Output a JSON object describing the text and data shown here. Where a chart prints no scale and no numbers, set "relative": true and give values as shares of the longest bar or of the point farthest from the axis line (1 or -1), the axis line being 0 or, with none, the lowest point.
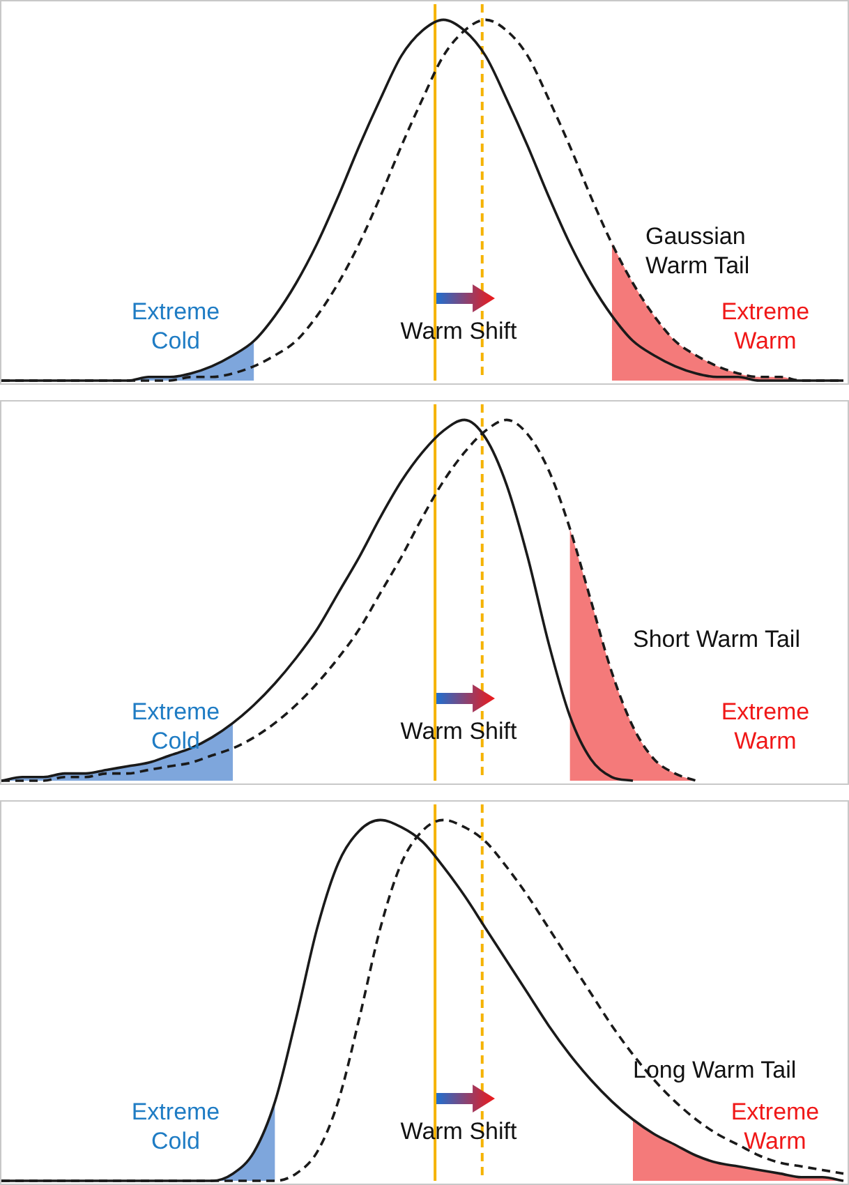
{
  "chart_data": [
    {
      "type": "line",
      "relative": true,
      "categories": [
        null,
        null,
        null,
        null,
        null,
        null,
        null,
        null,
        null,
        null,
        null,
        null,
        null,
        null,
        null,
        null,
        null,
        null,
        null,
        null,
        null,
        null,
        null,
        null,
        null,
        null,
        null,
        null,
        null,
        null,
        null,
        null,
        null,
        null,
        null,
        null,
        null,
        null,
        null,
        null,
        null
      ],
      "series": [
        {
          "type": "line",
          "color": "#1a1a1a",
          "line_style": "solid",
          "values": [
            0,
            0,
            0,
            0,
            0,
            0,
            0,
            0.01,
            0.01,
            0.02,
            0.04,
            0.07,
            0.11,
            0.18,
            0.27,
            0.38,
            0.51,
            0.65,
            0.78,
            0.9,
            0.97,
            1,
            0.97,
            0.9,
            0.78,
            0.65,
            0.51,
            0.38,
            0.27,
            0.18,
            0.11,
            0.07,
            0.04,
            0.02,
            0.01,
            0.01,
            0,
            0,
            0,
            0,
            0
          ]
        },
        {
          "type": "line",
          "color": "#1a1a1a",
          "line_style": "dashed",
          "values": [
            0,
            0,
            0,
            0,
            0,
            0,
            0,
            0,
            0,
            0.01,
            0.01,
            0.02,
            0.04,
            0.07,
            0.11,
            0.18,
            0.27,
            0.38,
            0.51,
            0.65,
            0.78,
            0.9,
            0.97,
            1,
            0.97,
            0.9,
            0.78,
            0.65,
            0.51,
            0.38,
            0.27,
            0.18,
            0.11,
            0.07,
            0.04,
            0.02,
            0.01,
            0.01,
            0,
            0,
            0
          ]
        },
        {
          "type": "area",
          "color": "#7ea6dc",
          "values": [
            0,
            0,
            0,
            0,
            0,
            0,
            0,
            0.01,
            0.01,
            0.02,
            0.04,
            0.07,
            0.11,
            null,
            null,
            null,
            null,
            null,
            null,
            null,
            null,
            null,
            null,
            null,
            null,
            null,
            null,
            null,
            null,
            null,
            null,
            null,
            null,
            null,
            null,
            null,
            null,
            null,
            null,
            null,
            null
          ]
        },
        {
          "type": "area",
          "color": "#f47a7a",
          "values": [
            null,
            null,
            null,
            null,
            null,
            null,
            null,
            null,
            null,
            null,
            null,
            null,
            null,
            null,
            null,
            null,
            null,
            null,
            null,
            null,
            null,
            null,
            null,
            null,
            null,
            null,
            null,
            null,
            null,
            0.38,
            0.27,
            0.18,
            0.11,
            0.07,
            0.04,
            0.02,
            0.01,
            0.01,
            0,
            0,
            0
          ]
        }
      ],
      "annotations": [
        "Extreme Cold",
        "Warm Shift",
        "Gaussian Warm Tail",
        "Extreme Warm"
      ]
    },
    {
      "type": "line",
      "relative": true,
      "categories": [
        null,
        null,
        null,
        null,
        null,
        null,
        null,
        null,
        null,
        null,
        null,
        null,
        null,
        null,
        null,
        null,
        null,
        null,
        null,
        null,
        null,
        null,
        null,
        null,
        null,
        null,
        null,
        null,
        null,
        null,
        null,
        null,
        null,
        null,
        null,
        null,
        null,
        null,
        null,
        null,
        null
      ],
      "series": [
        {
          "type": "line",
          "color": "#1a1a1a",
          "line_style": "solid",
          "values": [
            0,
            0.01,
            0.01,
            0.02,
            0.02,
            0.03,
            0.04,
            0.05,
            0.07,
            0.09,
            0.12,
            0.16,
            0.21,
            0.27,
            0.34,
            0.42,
            0.52,
            0.62,
            0.73,
            0.83,
            0.91,
            0.97,
            1,
            0.95,
            0.82,
            0.62,
            0.38,
            0.18,
            0.06,
            0.01,
            0,
            null,
            null,
            null,
            null,
            null,
            null,
            null,
            null,
            null,
            null
          ]
        },
        {
          "type": "line",
          "color": "#1a1a1a",
          "line_style": "dashed",
          "values": [
            0,
            0,
            0,
            0.01,
            0.01,
            0.02,
            0.02,
            0.03,
            0.04,
            0.05,
            0.07,
            0.09,
            0.12,
            0.16,
            0.21,
            0.27,
            0.34,
            0.42,
            0.52,
            0.62,
            0.73,
            0.83,
            0.91,
            0.97,
            1,
            0.96,
            0.86,
            0.7,
            0.5,
            0.3,
            0.15,
            0.06,
            0.02,
            0,
            null,
            null,
            null,
            null,
            null,
            null,
            null
          ]
        },
        {
          "type": "area",
          "color": "#7ea6dc",
          "values": [
            0,
            0.01,
            0.01,
            0.02,
            0.02,
            0.03,
            0.04,
            0.05,
            0.07,
            0.09,
            0.12,
            0.16,
            null,
            null,
            null,
            null,
            null,
            null,
            null,
            null,
            null,
            null,
            null,
            null,
            null,
            null,
            null,
            null,
            null,
            null,
            null,
            null,
            null,
            null,
            null,
            null,
            null,
            null,
            null,
            null,
            null
          ]
        },
        {
          "type": "area",
          "color": "#f47a7a",
          "values": [
            null,
            null,
            null,
            null,
            null,
            null,
            null,
            null,
            null,
            null,
            null,
            null,
            null,
            null,
            null,
            null,
            null,
            null,
            null,
            null,
            null,
            null,
            null,
            null,
            null,
            null,
            null,
            0.7,
            0.5,
            0.3,
            0.15,
            0.06,
            0.02,
            0,
            null,
            null,
            null,
            null,
            null,
            null,
            null
          ]
        }
      ],
      "annotations": [
        "Extreme Cold",
        "Warm Shift",
        "Short Warm Tail",
        "Extreme Warm"
      ]
    },
    {
      "type": "line",
      "relative": true,
      "categories": [
        null,
        null,
        null,
        null,
        null,
        null,
        null,
        null,
        null,
        null,
        null,
        null,
        null,
        null,
        null,
        null,
        null,
        null,
        null,
        null,
        null,
        null,
        null,
        null,
        null,
        null,
        null,
        null,
        null,
        null,
        null,
        null,
        null,
        null,
        null,
        null,
        null,
        null,
        null,
        null,
        null
      ],
      "series": [
        {
          "type": "line",
          "color": "#1a1a1a",
          "line_style": "solid",
          "values": [
            0,
            0,
            0,
            0,
            0,
            0,
            0,
            0,
            0,
            0,
            0,
            0.02,
            0.08,
            0.22,
            0.45,
            0.7,
            0.88,
            0.97,
            1,
            0.98,
            0.94,
            0.87,
            0.79,
            0.7,
            0.61,
            0.52,
            0.43,
            0.35,
            0.28,
            0.22,
            0.17,
            0.13,
            0.1,
            0.07,
            0.05,
            0.04,
            0.03,
            0.02,
            0.01,
            0.01,
            0
          ]
        },
        {
          "type": "line",
          "color": "#1a1a1a",
          "line_style": "dashed",
          "values": [
            0,
            0,
            0,
            0,
            0,
            0,
            0,
            0,
            0,
            0,
            0,
            0,
            0,
            0,
            0.02,
            0.08,
            0.22,
            0.45,
            0.7,
            0.88,
            0.97,
            1,
            0.98,
            0.94,
            0.87,
            0.79,
            0.7,
            0.61,
            0.52,
            0.43,
            0.35,
            0.28,
            0.22,
            0.17,
            0.13,
            0.1,
            0.07,
            0.05,
            0.04,
            0.03,
            0.02
          ]
        },
        {
          "type": "area",
          "color": "#7ea6dc",
          "values": [
            0,
            0,
            0,
            0,
            0,
            0,
            0,
            0,
            0,
            0,
            0,
            0.02,
            0.08,
            0.22,
            null,
            null,
            null,
            null,
            null,
            null,
            null,
            null,
            null,
            null,
            null,
            null,
            null,
            null,
            null,
            null,
            null,
            null,
            null,
            null,
            null,
            null,
            null,
            null,
            null,
            null,
            null
          ]
        },
        {
          "type": "area",
          "color": "#f47a7a",
          "values": [
            null,
            null,
            null,
            null,
            null,
            null,
            null,
            null,
            null,
            null,
            null,
            null,
            null,
            null,
            null,
            null,
            null,
            null,
            null,
            null,
            null,
            null,
            null,
            null,
            null,
            null,
            null,
            null,
            null,
            null,
            0.17,
            0.13,
            0.1,
            0.07,
            0.05,
            0.04,
            0.03,
            0.02,
            0.01,
            0.01,
            0
          ]
        }
      ],
      "annotations": [
        "Extreme Cold",
        "Warm Shift",
        "Long Warm Tail",
        "Extreme Warm"
      ]
    }
  ]
}
